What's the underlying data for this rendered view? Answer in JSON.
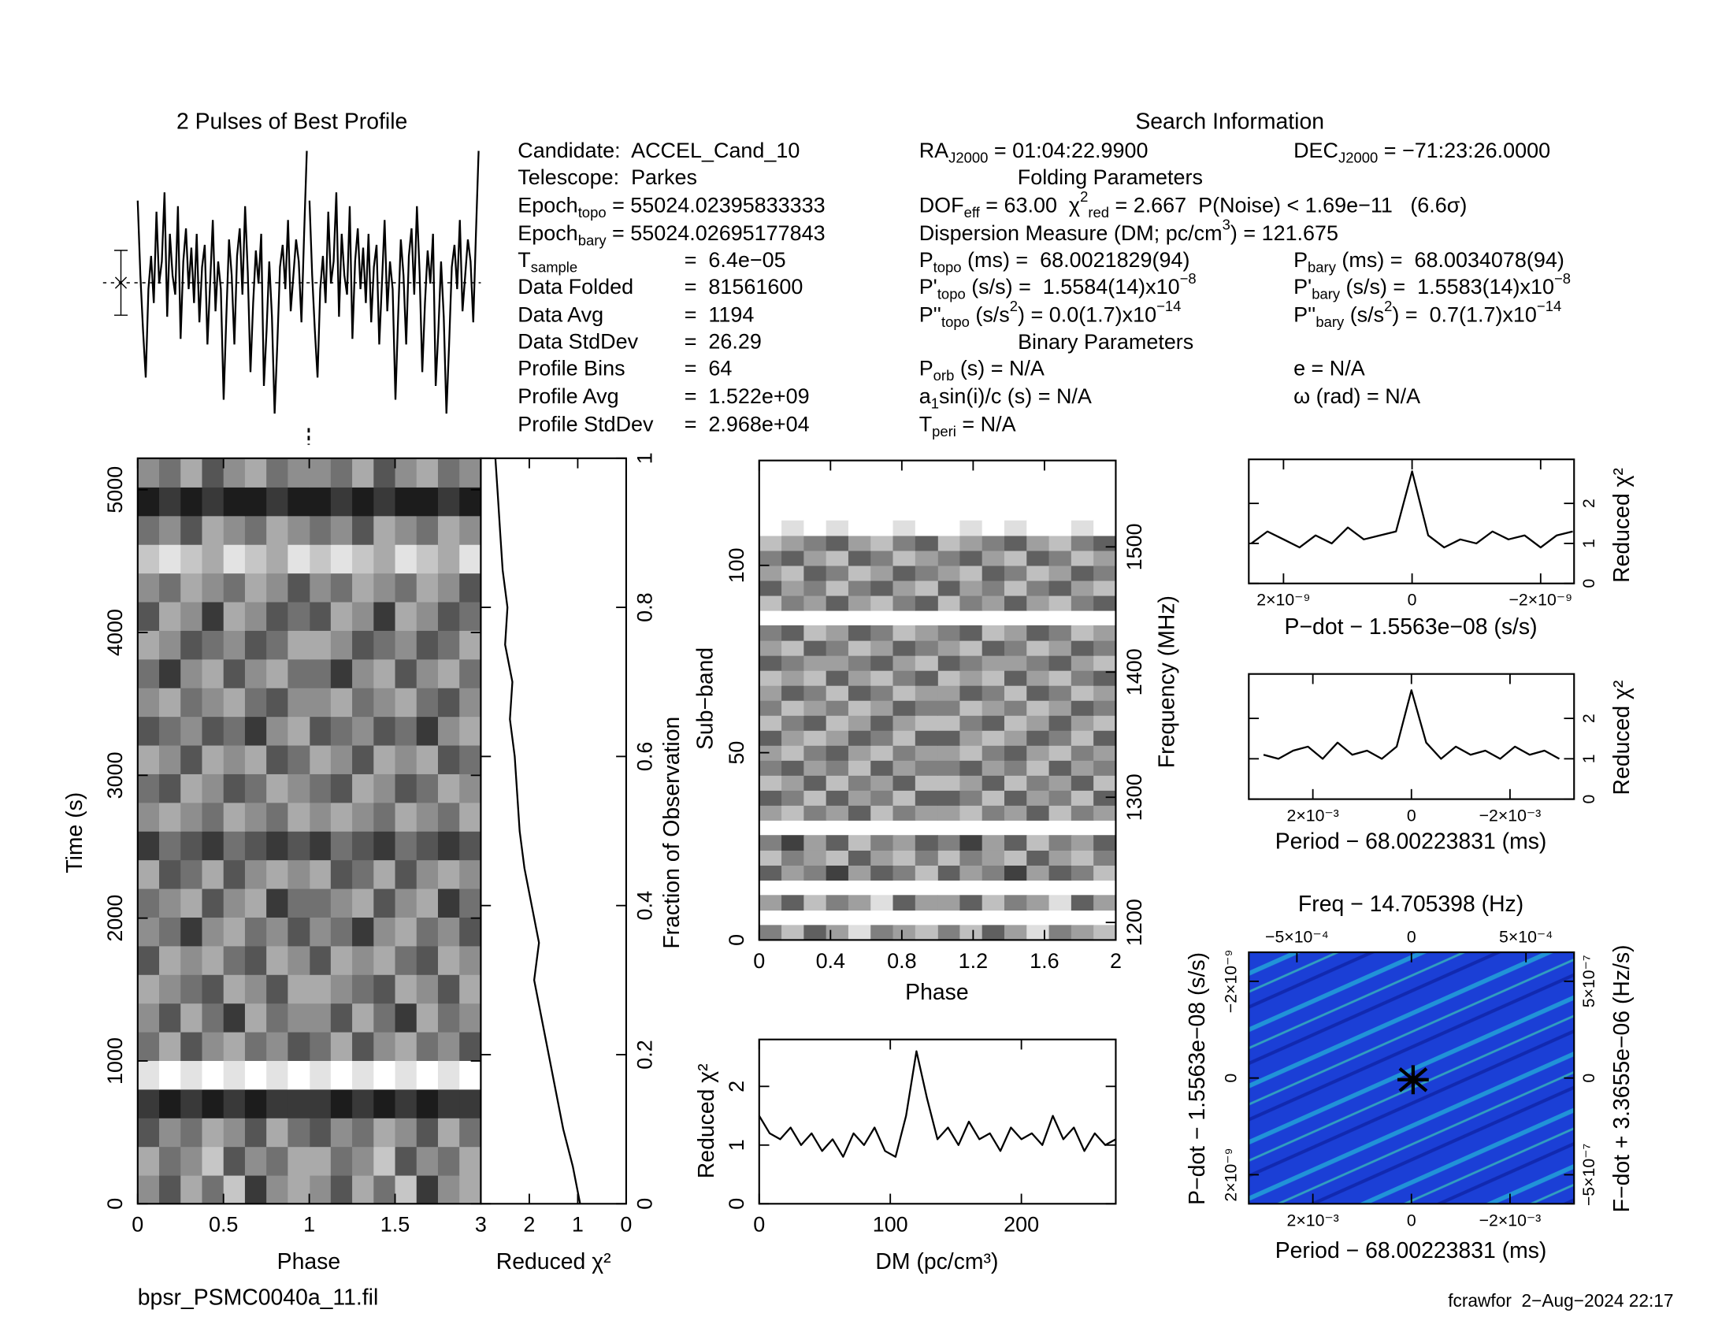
{
  "profile_title_note": null,
  "search_info": {
    "title": "Search Information",
    "folding_title": "Folding Parameters",
    "binary_title": "Binary Parameters",
    "left": [
      [
        "Candidate:  ACCEL_Cand_10"
      ],
      [
        "Telescope:  Parkes"
      ],
      [
        "Epoch",
        {
          "sub": "topo"
        },
        " = 55024.02395833333"
      ],
      [
        "Epoch",
        {
          "sub": "bary"
        },
        " = 55024.02695177843"
      ],
      [
        "T",
        {
          "sub": "sample"
        },
        "=  6.4e−05"
      ],
      [
        "Data Folded",
        "=  81561600"
      ],
      [
        "Data Avg",
        "=  1194"
      ],
      [
        "Data StdDev",
        "=  26.29"
      ],
      [
        "Profile Bins",
        "=  64"
      ],
      [
        "Profile Avg",
        "=  1.522e+09"
      ],
      [
        "Profile StdDev",
        "=  2.968e+04"
      ]
    ],
    "middle": [
      [
        "RA",
        {
          "sub": "J2000"
        },
        " = 01:04:22.9900"
      ],
      [
        "DOF",
        {
          "sub": "eff"
        },
        " = 63.00  χ",
        {
          "sup": "2"
        },
        {
          "sub": "red"
        },
        " = 2.667  P(Noise) < 1.69e−11   (6.6σ)"
      ],
      [
        "Dispersion Measure (DM; pc/cm",
        {
          "sup": "3"
        },
        ") = 121.675"
      ],
      [
        "P",
        {
          "sub": "topo"
        },
        " (ms) =  68.0021829(94)"
      ],
      [
        "P'",
        {
          "sub": "topo"
        },
        " (s/s) =  1.5584(14)x10",
        {
          "sup": "−8"
        }
      ],
      [
        "P''",
        {
          "sub": "topo"
        },
        " (s/s",
        {
          "sup": "2"
        },
        ") = 0.0(1.7)x10",
        {
          "sup": "−14"
        }
      ],
      [
        "P",
        {
          "sub": "orb"
        },
        " (s) = N/A"
      ],
      [
        "a",
        {
          "sub": "1"
        },
        "sin(i)/c (s) = N/A"
      ],
      [
        "T",
        {
          "sub": "peri"
        },
        " = N/A"
      ]
    ],
    "right": [
      [
        "DEC",
        {
          "sub": "J2000"
        },
        " = −71:23:26.0000"
      ],
      [
        "P",
        {
          "sub": "bary"
        },
        " (ms) =  68.0034078(94)"
      ],
      [
        "P'",
        {
          "sub": "bary"
        },
        " (s/s) =  1.5583(14)x10",
        {
          "sup": "−8"
        }
      ],
      [
        "P''",
        {
          "sub": "bary"
        },
        " (s/s",
        {
          "sup": "2"
        },
        ") =  0.7(1.7)x10",
        {
          "sup": "−14"
        }
      ],
      [
        "e = N/A"
      ],
      [
        "ω (rad) = N/A"
      ]
    ]
  },
  "filename": "bpsr_PSMC0040a_11.fil",
  "footer": "fcrawfor  2−Aug−2024 22:17",
  "chart_data": [
    {
      "type": "profile",
      "title": "2 Pulses of Best Profile",
      "color": "#000000",
      "values": [
        0.82,
        0.55,
        0.35,
        0.18,
        0.5,
        0.62,
        0.45,
        0.78,
        0.52,
        0.6,
        0.85,
        0.4,
        0.7,
        0.55,
        0.48,
        0.8,
        0.32,
        0.6,
        0.72,
        0.5,
        0.65,
        0.45,
        0.7,
        0.38,
        0.58,
        0.66,
        0.3,
        0.52,
        0.75,
        0.42,
        0.6,
        0.5,
        0.1,
        0.4,
        0.68,
        0.55,
        0.3,
        0.62,
        0.72,
        0.48,
        0.8,
        0.56,
        0.2,
        0.45,
        0.64,
        0.52,
        0.7,
        0.15,
        0.35,
        0.6,
        0.4,
        0.05,
        0.3,
        0.58,
        0.66,
        0.5,
        0.75,
        0.42,
        0.55,
        0.68,
        0.6,
        0.38,
        0.7,
        1.0
      ]
    },
    {
      "type": "heatmap",
      "xlabel": "Phase",
      "ylabel": "Time (s)",
      "xlim": [
        0,
        2
      ],
      "xticks": [
        0,
        0.5,
        1,
        1.5
      ],
      "ylim": [
        0,
        5220
      ],
      "yticks": [
        0,
        1000,
        2000,
        3000,
        4000,
        5000
      ],
      "rows": [
        [
          5,
          3,
          6,
          4,
          7,
          2,
          5,
          6
        ],
        [
          6,
          4,
          5,
          7,
          3,
          5,
          4,
          6
        ],
        [
          3,
          5,
          4,
          6,
          5,
          3,
          6,
          4
        ],
        [
          2,
          1,
          2,
          1,
          2,
          1,
          2,
          2
        ],
        [
          8,
          9,
          8,
          9,
          8,
          9,
          8,
          9
        ],
        [
          4,
          6,
          3,
          5,
          6,
          4,
          5,
          3
        ],
        [
          5,
          3,
          6,
          4,
          2,
          6,
          4,
          5
        ],
        [
          6,
          5,
          4,
          3,
          6,
          5,
          3,
          6
        ],
        [
          3,
          6,
          5,
          6,
          4,
          3,
          6,
          5
        ],
        [
          5,
          4,
          2,
          5,
          6,
          4,
          5,
          3
        ],
        [
          4,
          5,
          6,
          3,
          5,
          6,
          2,
          4
        ],
        [
          6,
          3,
          4,
          6,
          3,
          5,
          6,
          5
        ],
        [
          2,
          4,
          3,
          2,
          4,
          3,
          2,
          3
        ],
        [
          5,
          6,
          5,
          4,
          6,
          5,
          4,
          6
        ],
        [
          4,
          3,
          6,
          5,
          3,
          4,
          6,
          5
        ],
        [
          6,
          5,
          3,
          6,
          5,
          6,
          3,
          4
        ],
        [
          3,
          4,
          5,
          3,
          4,
          2,
          5,
          6
        ],
        [
          5,
          6,
          4,
          5,
          6,
          4,
          3,
          5
        ],
        [
          4,
          2,
          5,
          6,
          3,
          5,
          6,
          4
        ],
        [
          6,
          5,
          3,
          4,
          5,
          3,
          4,
          6
        ],
        [
          3,
          6,
          5,
          2,
          6,
          5,
          3,
          4
        ],
        [
          5,
          4,
          6,
          5,
          4,
          6,
          5,
          3
        ],
        [
          7,
          8,
          7,
          6,
          8,
          7,
          6,
          8
        ],
        [
          4,
          5,
          3,
          6,
          5,
          4,
          6,
          5
        ],
        [
          1,
          2,
          1,
          2,
          1,
          1,
          2,
          1
        ],
        [
          5,
          4,
          6,
          3,
          5,
          6,
          4,
          5
        ]
      ]
    },
    {
      "type": "line",
      "xlabel": "Reduced χ²",
      "ylabel": "Fraction of Observation",
      "color": "#000000",
      "xlim": [
        3,
        0
      ],
      "xticks": [
        3,
        2,
        1,
        0
      ],
      "ylim": [
        0,
        1
      ],
      "yticks": [
        0,
        0.2,
        0.4,
        0.6,
        0.8,
        1
      ],
      "y": [
        0,
        0.05,
        0.1,
        0.15,
        0.2,
        0.25,
        0.3,
        0.35,
        0.4,
        0.45,
        0.5,
        0.55,
        0.6,
        0.65,
        0.7,
        0.75,
        0.8,
        0.85,
        0.9,
        0.95,
        1
      ],
      "values": [
        0.95,
        1.1,
        1.3,
        1.45,
        1.6,
        1.75,
        1.9,
        1.8,
        1.95,
        2.1,
        2.2,
        2.25,
        2.3,
        2.4,
        2.35,
        2.5,
        2.45,
        2.55,
        2.6,
        2.65,
        2.7
      ]
    },
    {
      "type": "heatmap",
      "xlabel": "Phase",
      "ylabel": "Sub−band",
      "y2label": "Frequency (MHz)",
      "xlim": [
        0,
        2
      ],
      "xticks": [
        0,
        0.4,
        0.8,
        1.2,
        1.6,
        2
      ],
      "ylim": [
        0,
        128
      ],
      "yticks": [
        0,
        50,
        100
      ],
      "y2lim": [
        1186,
        1569
      ],
      "y2ticks": [
        1200,
        1300,
        1400,
        1500
      ],
      "rows": [
        [
          4,
          6,
          3,
          5,
          7,
          4,
          5,
          6
        ],
        null,
        [
          5,
          3,
          6,
          4,
          5,
          7,
          3,
          5
        ],
        null,
        [
          3,
          5,
          4,
          2,
          5,
          3,
          4,
          6
        ],
        [
          6,
          4,
          5,
          6,
          3,
          5,
          6,
          4
        ],
        [
          4,
          2,
          5,
          3,
          6,
          4,
          5,
          3
        ],
        null,
        [
          5,
          6,
          4,
          5,
          3,
          6,
          4,
          5
        ],
        [
          3,
          4,
          6,
          3,
          5,
          4,
          6,
          3
        ],
        [
          6,
          5,
          3,
          6,
          4,
          5,
          3,
          6
        ],
        [
          4,
          3,
          5,
          4,
          6,
          3,
          5,
          4
        ],
        [
          5,
          6,
          4,
          3,
          5,
          6,
          4,
          5
        ],
        [
          3,
          5,
          6,
          5,
          3,
          4,
          6,
          3
        ],
        [
          6,
          4,
          3,
          6,
          5,
          3,
          5,
          6
        ],
        [
          4,
          6,
          5,
          4,
          6,
          5,
          3,
          4
        ],
        [
          5,
          3,
          4,
          6,
          3,
          4,
          6,
          5
        ],
        [
          6,
          5,
          6,
          3,
          5,
          6,
          4,
          3
        ],
        [
          3,
          4,
          5,
          5,
          4,
          3,
          5,
          6
        ],
        [
          5,
          6,
          3,
          4,
          6,
          5,
          3,
          4
        ],
        [
          4,
          3,
          6,
          5,
          3,
          4,
          6,
          5
        ],
        null,
        [
          6,
          4,
          5,
          3,
          5,
          6,
          4,
          3
        ],
        [
          3,
          5,
          4,
          6,
          4,
          3,
          5,
          6
        ],
        [
          5,
          6,
          3,
          4,
          6,
          5,
          3,
          4
        ],
        [
          4,
          3,
          5,
          6,
          3,
          4,
          6,
          5
        ],
        [
          6,
          5,
          4,
          3,
          5,
          6,
          4,
          3
        ],
        [
          8,
          7,
          8,
          7,
          8,
          8,
          7,
          8
        ],
        null,
        null,
        null,
        null
      ]
    },
    {
      "type": "line",
      "xlabel": "DM (pc/cm³)",
      "ylabel": "Reduced χ²",
      "color": "#000000",
      "xlim": [
        0,
        272
      ],
      "xticks": [
        0,
        100,
        200
      ],
      "ylim": [
        0,
        2.8
      ],
      "yticks": [
        0,
        1,
        2
      ],
      "x": [
        0,
        8,
        16,
        24,
        32,
        40,
        48,
        56,
        64,
        72,
        80,
        88,
        96,
        104,
        112,
        120,
        128,
        136,
        144,
        152,
        160,
        168,
        176,
        184,
        192,
        200,
        208,
        216,
        224,
        232,
        240,
        248,
        256,
        264,
        272
      ],
      "values": [
        1.5,
        1.2,
        1.1,
        1.3,
        1.0,
        1.2,
        0.9,
        1.1,
        0.8,
        1.2,
        1.0,
        1.3,
        0.9,
        0.8,
        1.5,
        2.6,
        1.8,
        1.1,
        1.3,
        1.0,
        1.4,
        1.1,
        1.2,
        0.9,
        1.3,
        1.1,
        1.2,
        1.0,
        1.5,
        1.1,
        1.3,
        0.9,
        1.2,
        1.0,
        1.1
      ]
    },
    {
      "type": "line",
      "xlabel": "P−dot − 1.5563e−08 (s/s)",
      "ylabel": "Reduced χ²",
      "color": "#000000",
      "xlim": [
        2.54e-09,
        -2.52e-09
      ],
      "xticks": [
        {
          "value": 2e-09,
          "label": "2×10⁻⁹"
        },
        0,
        {
          "value": -2e-09,
          "label": "−2×10⁻⁹"
        }
      ],
      "ylim": [
        0,
        3.1
      ],
      "yticks": [
        0,
        1,
        2
      ],
      "x": [
        2.5e-09,
        2.25e-09,
        2e-09,
        1.75e-09,
        1.5e-09,
        1.25e-09,
        1e-09,
        7.5e-10,
        5e-10,
        2.5e-10,
        0,
        -2.5e-10,
        -5e-10,
        -7.5e-10,
        -1e-09,
        -1.25e-09,
        -1.5e-09,
        -1.75e-09,
        -2e-09,
        -2.25e-09,
        -2.5e-09
      ],
      "values": [
        1.0,
        1.3,
        1.1,
        0.9,
        1.2,
        1.0,
        1.4,
        1.1,
        1.2,
        1.3,
        2.8,
        1.2,
        0.9,
        1.1,
        1.0,
        1.3,
        1.1,
        1.2,
        0.9,
        1.2,
        1.3
      ]
    },
    {
      "type": "line",
      "xlabel": "Period − 68.00223831 (ms)",
      "ylabel": "Reduced χ²",
      "color": "#000000",
      "xlim": [
        0.0033,
        -0.0033
      ],
      "xticks": [
        {
          "value": 0.002,
          "label": "2×10⁻³"
        },
        0,
        {
          "value": -0.002,
          "label": "−2×10⁻³"
        }
      ],
      "ylim": [
        0,
        3.1
      ],
      "yticks": [
        0,
        1,
        2
      ],
      "x": [
        0.003,
        0.0027,
        0.0024,
        0.0021,
        0.0018,
        0.0015,
        0.0012,
        0.0009,
        0.0006,
        0.0003,
        0,
        -0.0003,
        -0.0006,
        -0.0009,
        -0.0012,
        -0.0015,
        -0.0018,
        -0.0021,
        -0.0024,
        -0.0027,
        -0.003
      ],
      "values": [
        1.1,
        1.0,
        1.2,
        1.3,
        1.0,
        1.4,
        1.1,
        1.2,
        1.0,
        1.3,
        2.7,
        1.4,
        1.0,
        1.3,
        1.1,
        1.2,
        1.0,
        1.3,
        1.1,
        1.2,
        1.0
      ]
    },
    {
      "type": "plane",
      "title": "Freq − 14.705398 (Hz)",
      "xlabel": "Period − 68.00223831 (ms)",
      "ylabel": "P−dot − 1.5563e−08 (s/s)",
      "y2label": "F−dot + 3.3655e−06 (Hz/s)",
      "xlim": [
        0.0033,
        -0.0033
      ],
      "xticks": [
        {
          "value": 0.002,
          "label": "2×10⁻³"
        },
        0,
        {
          "value": -0.002,
          "label": "−2×10⁻³"
        }
      ],
      "x2lim": [
        -0.00071,
        0.00071
      ],
      "x2ticks": [
        {
          "value": -0.0005,
          "label": "−5×10⁻⁴"
        },
        0,
        {
          "value": 0.0005,
          "label": "5×10⁻⁴"
        }
      ],
      "ylim": [
        2.6e-09,
        -2.6e-09
      ],
      "yticks": [
        {
          "value": 2e-09,
          "label": "2×10⁻⁹"
        },
        0,
        {
          "value": -2e-09,
          "label": "−2×10⁻⁹"
        }
      ],
      "y2lim": [
        -6.5e-07,
        6.5e-07
      ],
      "y2ticks": [
        {
          "value": -5e-07,
          "label": "−5×10⁻⁷"
        },
        0,
        {
          "value": 5e-07,
          "label": "5×10⁻⁷"
        }
      ]
    }
  ]
}
